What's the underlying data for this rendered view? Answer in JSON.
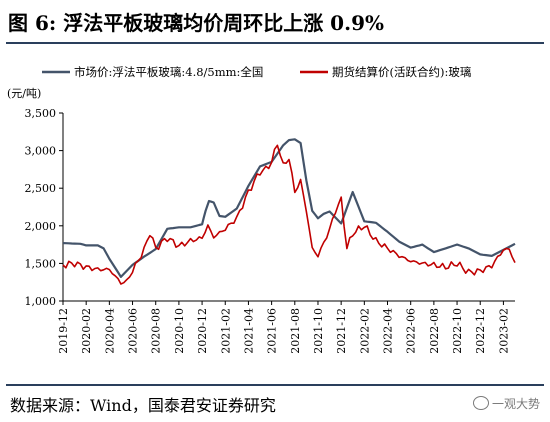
{
  "header": {
    "title": "图 6:  浮法平板玻璃均价周环比上涨 0.9%"
  },
  "footer": {
    "source": "数据来源：Wind，国泰君安证券研究",
    "watermark": "一观大势"
  },
  "chart_data": {
    "type": "line",
    "ylabel": "(元/吨)",
    "ylim": [
      1000,
      3500
    ],
    "yticks": [
      "1,000",
      "1,500",
      "2,000",
      "2,500",
      "3,000",
      "3,500"
    ],
    "xlim": [
      0,
      39
    ],
    "xticks": [
      "2019-12",
      "2020-02",
      "2020-04",
      "2020-06",
      "2020-08",
      "2020-10",
      "2020-12",
      "2021-02",
      "2021-04",
      "2021-06",
      "2021-08",
      "2021-10",
      "2021-12",
      "2022-02",
      "2022-04",
      "2022-06",
      "2022-08",
      "2022-10",
      "2022-12",
      "2023-02"
    ],
    "grid": false,
    "legend": "top",
    "series": [
      {
        "name": "市场价:浮法平板玻璃:4.8/5mm:全国",
        "color": "#44546a",
        "x": [
          0,
          1.5,
          2,
          3,
          3.5,
          4,
          5,
          6,
          7,
          8,
          9,
          10,
          11,
          12,
          12.3,
          12.6,
          13,
          13.5,
          14,
          15,
          16,
          17,
          18,
          19,
          19.5,
          20,
          20.5,
          21,
          21.5,
          22,
          22.5,
          23,
          24,
          25,
          26,
          26.5,
          27,
          28,
          29,
          30,
          31,
          32,
          33,
          34,
          35,
          36,
          37,
          38,
          38.5,
          39
        ],
        "y": [
          1770,
          1760,
          1740,
          1740,
          1700,
          1560,
          1320,
          1480,
          1590,
          1690,
          1960,
          1980,
          1980,
          2020,
          2200,
          2330,
          2310,
          2130,
          2120,
          2230,
          2530,
          2790,
          2850,
          3070,
          3140,
          3150,
          3100,
          2600,
          2200,
          2100,
          2160,
          2190,
          2030,
          2450,
          2060,
          2050,
          2040,
          1920,
          1790,
          1710,
          1750,
          1650,
          1700,
          1750,
          1700,
          1620,
          1600,
          1680,
          1720,
          1760
        ]
      },
      {
        "name": "期货结算价(活跃合约):玻璃",
        "color": "#c00000",
        "x": [
          0,
          1,
          2,
          3,
          4,
          5,
          5.5,
          6,
          7,
          7.5,
          8,
          9,
          10,
          11,
          12,
          12.5,
          13,
          14,
          15,
          16,
          17,
          17.5,
          18,
          18.5,
          19,
          19.5,
          20,
          20.5,
          21,
          21.5,
          22,
          23,
          23.5,
          24,
          24.5,
          25,
          26,
          27,
          28,
          29,
          30,
          31,
          32,
          33,
          34,
          35,
          36,
          37,
          38,
          38.5,
          39
        ],
        "y": [
          1480,
          1500,
          1450,
          1420,
          1420,
          1240,
          1260,
          1400,
          1680,
          1910,
          1700,
          1840,
          1730,
          1800,
          1840,
          2000,
          1850,
          1960,
          2100,
          2450,
          2720,
          2750,
          2850,
          3100,
          2800,
          2900,
          2450,
          2600,
          2200,
          1700,
          1600,
          1950,
          2200,
          2350,
          1700,
          1900,
          2000,
          1800,
          1700,
          1600,
          1530,
          1500,
          1480,
          1450,
          1500,
          1380,
          1400,
          1470,
          1680,
          1690,
          1510
        ]
      }
    ]
  }
}
